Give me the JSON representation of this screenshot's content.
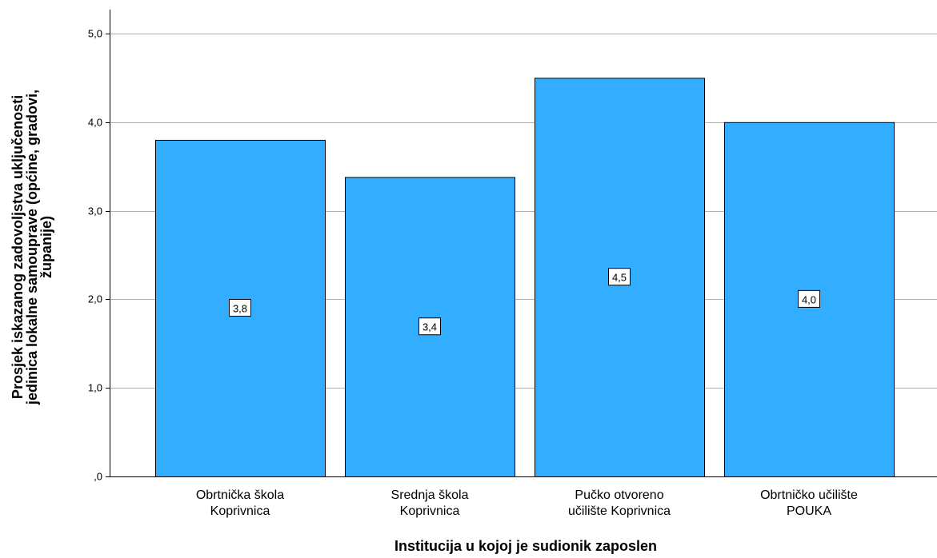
{
  "chart_data": {
    "type": "bar",
    "categories": [
      [
        "Obrtnička škola",
        "Koprivnica"
      ],
      [
        "Srednja škola",
        "Koprivnica"
      ],
      [
        "Pučko otvoreno",
        "učilište Koprivnica"
      ],
      [
        "Obrtničko učilište",
        "POUKA"
      ]
    ],
    "values": [
      3.8,
      3.38,
      4.5,
      4.0
    ],
    "data_labels": [
      "3,8",
      "3,4",
      "4,5",
      "4,0"
    ],
    "xlabel": "Institucija u kojoj je sudionik zaposlen",
    "ylabel": [
      "Prosjek iskazanog zadovoljstva uključenosti",
      "jedinica lokalne samouprave (općine, gradovi,",
      "županije)"
    ],
    "ylim": [
      0,
      5
    ],
    "yticks": [
      0,
      1,
      2,
      3,
      4,
      5
    ],
    "ytick_labels": [
      ",0",
      "1,0",
      "2,0",
      "3,0",
      "4,0",
      "5,0"
    ],
    "grid": true,
    "bar_color": "#33adff"
  }
}
